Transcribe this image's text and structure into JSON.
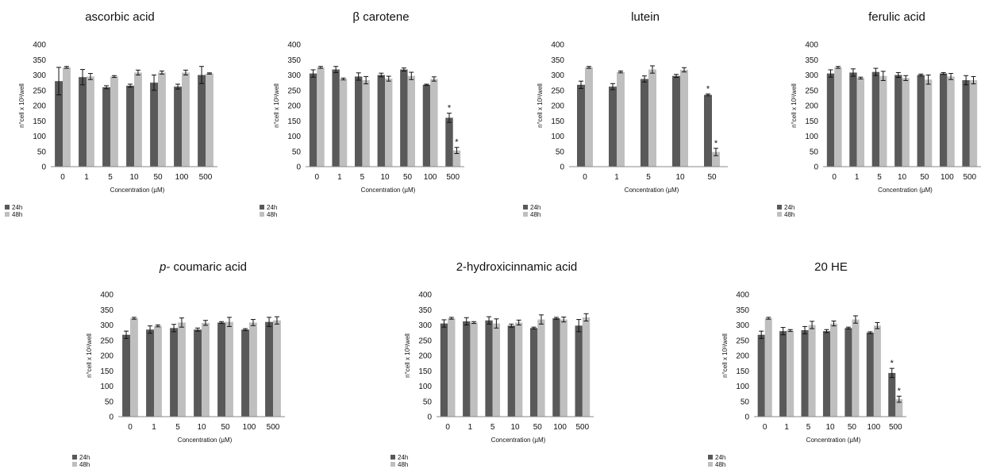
{
  "chart_data": [
    {
      "type": "bar",
      "title": "ascorbic acid",
      "xlabel": "Concentration (µM)",
      "ylabel": "n°cell x 10³/well",
      "ylim": [
        0,
        400
      ],
      "yticks": [
        0,
        50,
        100,
        150,
        200,
        250,
        300,
        350,
        400
      ],
      "categories": [
        "0",
        "1",
        "5",
        "10",
        "50",
        "100",
        "500"
      ],
      "series": [
        {
          "name": "24h",
          "color": "#595959",
          "values": [
            280,
            293,
            260,
            265,
            275,
            262,
            300
          ],
          "errors": [
            45,
            25,
            5,
            5,
            25,
            8,
            28
          ]
        },
        {
          "name": "48h",
          "color": "#bfbfbf",
          "values": [
            325,
            295,
            295,
            308,
            308,
            308,
            305
          ],
          "errors": [
            3,
            10,
            3,
            8,
            5,
            8,
            2
          ]
        }
      ],
      "annotations": [],
      "legend": "bottom-left"
    },
    {
      "type": "bar",
      "title": "β carotene",
      "xlabel": "Concentration (µM)",
      "ylabel": "n°cell x 10³/well",
      "ylim": [
        0,
        400
      ],
      "yticks": [
        0,
        50,
        100,
        150,
        200,
        250,
        300,
        350,
        400
      ],
      "categories": [
        "0",
        "1",
        "5",
        "10",
        "50",
        "100",
        "500"
      ],
      "series": [
        {
          "name": "24h",
          "color": "#595959",
          "values": [
            305,
            318,
            295,
            300,
            318,
            268,
            160
          ],
          "errors": [
            12,
            10,
            12,
            6,
            5,
            2,
            15
          ]
        },
        {
          "name": "48h",
          "color": "#bfbfbf",
          "values": [
            325,
            287,
            283,
            288,
            297,
            287,
            53
          ],
          "errors": [
            3,
            3,
            12,
            8,
            12,
            7,
            10
          ]
        }
      ],
      "annotations": [
        {
          "category": "500",
          "series": "24h",
          "text": "*"
        },
        {
          "category": "500",
          "series": "48h",
          "text": "*"
        }
      ],
      "legend": "bottom-left"
    },
    {
      "type": "bar",
      "title": "lutein",
      "xlabel": "Concentration (µM)",
      "ylabel": "n°cell x 10³/well",
      "ylim": [
        0,
        400
      ],
      "yticks": [
        0,
        50,
        100,
        150,
        200,
        250,
        300,
        350,
        400
      ],
      "categories": [
        "0",
        "1",
        "5",
        "10",
        "50"
      ],
      "series": [
        {
          "name": "24h",
          "color": "#595959",
          "values": [
            268,
            262,
            287,
            297,
            235
          ],
          "errors": [
            12,
            10,
            10,
            5,
            3
          ]
        },
        {
          "name": "48h",
          "color": "#bfbfbf",
          "values": [
            325,
            310,
            318,
            317,
            48
          ],
          "errors": [
            3,
            3,
            12,
            7,
            12
          ]
        }
      ],
      "annotations": [
        {
          "category": "50",
          "series": "24h",
          "text": "*"
        },
        {
          "category": "50",
          "series": "48h",
          "text": "*"
        }
      ],
      "legend": "bottom-left"
    },
    {
      "type": "bar",
      "title": "ferulic acid",
      "xlabel": "Concentration (µM)",
      "ylabel": "n°cell x 10³/well",
      "ylim": [
        0,
        400
      ],
      "yticks": [
        0,
        50,
        100,
        150,
        200,
        250,
        300,
        350,
        400
      ],
      "categories": [
        "0",
        "1",
        "5",
        "10",
        "50",
        "100",
        "500"
      ],
      "series": [
        {
          "name": "24h",
          "color": "#595959",
          "values": [
            305,
            308,
            310,
            300,
            300,
            305,
            283
          ],
          "errors": [
            12,
            12,
            12,
            8,
            3,
            3,
            15
          ]
        },
        {
          "name": "48h",
          "color": "#bfbfbf",
          "values": [
            325,
            290,
            297,
            290,
            285,
            295,
            283
          ],
          "errors": [
            3,
            3,
            15,
            8,
            15,
            10,
            12
          ]
        }
      ],
      "annotations": [],
      "legend": "bottom-left"
    },
    {
      "type": "bar",
      "title": "p- coumaric acid",
      "xlabel": "Concentration (µM)",
      "ylabel": "n°cell x 10³/well",
      "ylim": [
        0,
        400
      ],
      "yticks": [
        0,
        50,
        100,
        150,
        200,
        250,
        300,
        350,
        400
      ],
      "categories": [
        "0",
        "1",
        "5",
        "10",
        "50",
        "100",
        "500"
      ],
      "series": [
        {
          "name": "24h",
          "color": "#595959",
          "values": [
            268,
            285,
            290,
            285,
            308,
            285,
            310
          ],
          "errors": [
            12,
            12,
            12,
            5,
            3,
            3,
            15
          ]
        },
        {
          "name": "48h",
          "color": "#bfbfbf",
          "values": [
            322,
            297,
            308,
            307,
            310,
            308,
            315
          ],
          "errors": [
            3,
            3,
            15,
            8,
            15,
            10,
            12
          ]
        }
      ],
      "annotations": [],
      "legend": "bottom-left"
    },
    {
      "type": "bar",
      "title": "2-hydroxicinnamic acid",
      "xlabel": "Concentration (µM)",
      "ylabel": "n°cell x 10³/well",
      "ylim": [
        0,
        400
      ],
      "yticks": [
        0,
        50,
        100,
        150,
        200,
        250,
        300,
        350,
        400
      ],
      "categories": [
        "0",
        "1",
        "5",
        "10",
        "50",
        "100",
        "500"
      ],
      "series": [
        {
          "name": "24h",
          "color": "#595959",
          "values": [
            305,
            312,
            315,
            298,
            290,
            322,
            298
          ],
          "errors": [
            12,
            12,
            12,
            5,
            3,
            3,
            20
          ]
        },
        {
          "name": "48h",
          "color": "#bfbfbf",
          "values": [
            322,
            308,
            305,
            308,
            318,
            318,
            325
          ],
          "errors": [
            3,
            3,
            15,
            8,
            15,
            8,
            12
          ]
        }
      ],
      "annotations": [],
      "legend": "bottom-left"
    },
    {
      "type": "bar",
      "title": "20 HE",
      "xlabel": "Concentration (µM)",
      "ylabel": "n°cell x 10³/well",
      "ylim": [
        0,
        400
      ],
      "yticks": [
        0,
        50,
        100,
        150,
        200,
        250,
        300,
        350,
        400
      ],
      "categories": [
        "0",
        "1",
        "5",
        "10",
        "50",
        "100",
        "500"
      ],
      "series": [
        {
          "name": "24h",
          "color": "#595959",
          "values": [
            268,
            280,
            283,
            280,
            290,
            275,
            143
          ],
          "errors": [
            12,
            12,
            12,
            5,
            3,
            3,
            15
          ]
        },
        {
          "name": "48h",
          "color": "#bfbfbf",
          "values": [
            322,
            282,
            300,
            305,
            318,
            298,
            57
          ],
          "errors": [
            3,
            3,
            12,
            8,
            12,
            10,
            10
          ]
        }
      ],
      "annotations": [
        {
          "category": "500",
          "series": "24h",
          "text": "*"
        },
        {
          "category": "500",
          "series": "48h",
          "text": "*"
        }
      ],
      "legend": "bottom-left"
    }
  ]
}
